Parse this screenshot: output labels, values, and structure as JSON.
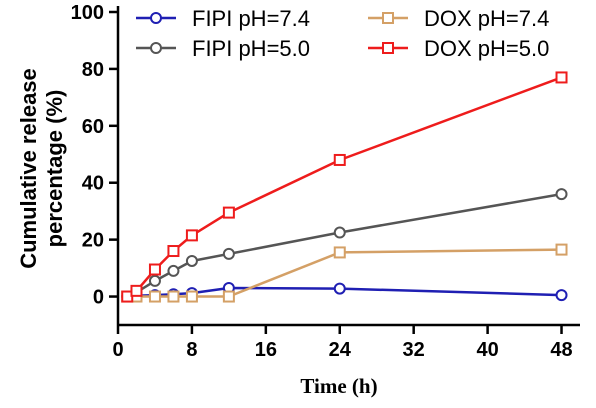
{
  "chart_data": {
    "type": "line",
    "title": "",
    "xlabel": "Time (h)",
    "ylabel": "Cumulative release percentage (%)",
    "ylabel_lines": [
      "Cumulative release",
      "percentage (%)"
    ],
    "xlim": [
      0,
      50
    ],
    "ylim": [
      -10,
      100
    ],
    "x_ticks": [
      0,
      8,
      16,
      24,
      32,
      40,
      48
    ],
    "y_ticks": [
      0,
      20,
      40,
      60,
      80,
      100
    ],
    "grid": false,
    "legend_position": "top",
    "series": [
      {
        "name": "FIPI pH=7.4",
        "color": "#1f1fb3",
        "marker": "circle",
        "x": [
          1,
          2,
          4,
          6,
          8,
          12,
          24,
          48
        ],
        "y": [
          0,
          0.3,
          0.5,
          0.8,
          1.2,
          3.0,
          2.8,
          0.5
        ]
      },
      {
        "name": "FIPI pH=5.0",
        "color": "#555555",
        "marker": "circle",
        "x": [
          1,
          2,
          4,
          6,
          8,
          12,
          24,
          48
        ],
        "y": [
          0,
          1.5,
          5.5,
          9.0,
          12.5,
          15.0,
          22.5,
          36.0
        ]
      },
      {
        "name": "DOX pH=7.4",
        "color": "#d4a066",
        "marker": "square",
        "x": [
          1,
          2,
          4,
          6,
          8,
          12,
          24,
          48
        ],
        "y": [
          0,
          0,
          0,
          0,
          0,
          0,
          15.5,
          16.5
        ]
      },
      {
        "name": "DOX pH=5.0",
        "color": "#ee1c1c",
        "marker": "square",
        "x": [
          1,
          2,
          4,
          6,
          8,
          12,
          24,
          48
        ],
        "y": [
          0,
          2.0,
          9.5,
          16.0,
          21.5,
          29.5,
          48.0,
          77.0
        ]
      }
    ]
  }
}
